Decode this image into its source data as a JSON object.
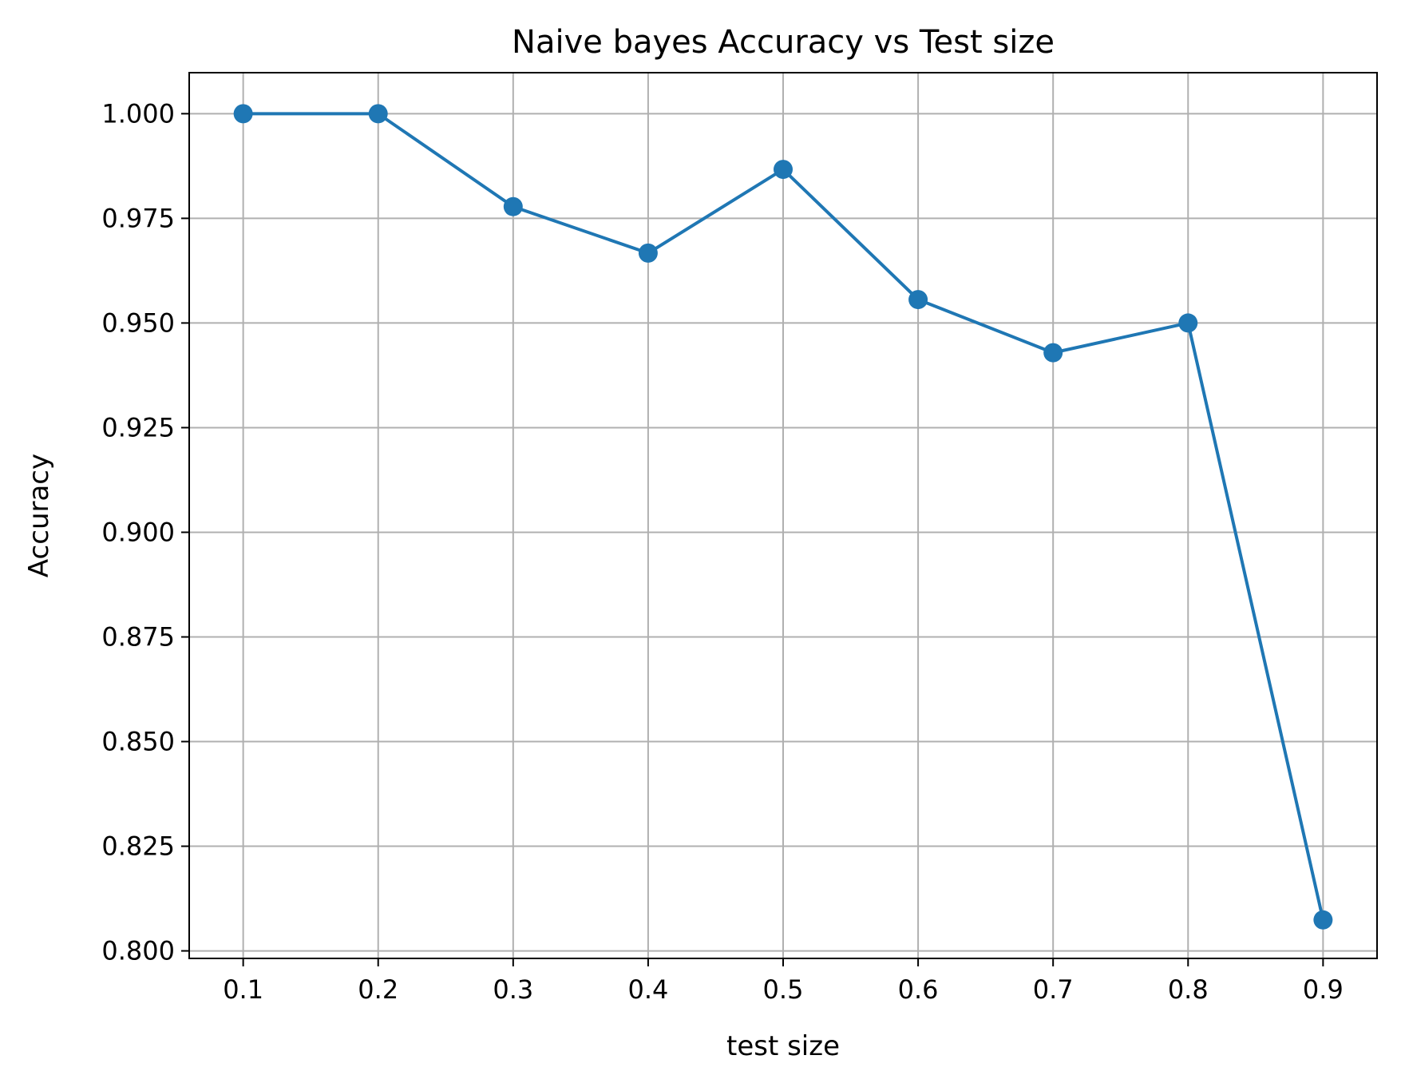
{
  "chart_data": {
    "type": "line",
    "title": "Naive bayes Accuracy vs Test size",
    "xlabel": "test size",
    "ylabel": "Accuracy",
    "x": [
      0.1,
      0.2,
      0.3,
      0.4,
      0.5,
      0.6,
      0.7,
      0.8,
      0.9
    ],
    "series": [
      {
        "values": [
          1.0,
          1.0,
          0.9778,
          0.9667,
          0.9867,
          0.9556,
          0.9429,
          0.95,
          0.8074
        ]
      }
    ],
    "xticks": [
      0.1,
      0.2,
      0.3,
      0.4,
      0.5,
      0.6,
      0.7,
      0.8,
      0.9
    ],
    "xtick_labels": [
      "0.1",
      "0.2",
      "0.3",
      "0.4",
      "0.5",
      "0.6",
      "0.7",
      "0.8",
      "0.9"
    ],
    "yticks": [
      0.8,
      0.825,
      0.85,
      0.875,
      0.9,
      0.925,
      0.95,
      0.975,
      1.0
    ],
    "ytick_labels": [
      "0.800",
      "0.825",
      "0.850",
      "0.875",
      "0.900",
      "0.925",
      "0.950",
      "0.975",
      "1.000"
    ],
    "xlim": [
      0.06,
      0.94
    ],
    "ylim": [
      0.7982,
      1.0098
    ],
    "grid": true,
    "legend": false,
    "marker": "circle",
    "color": "#1f77b4"
  }
}
